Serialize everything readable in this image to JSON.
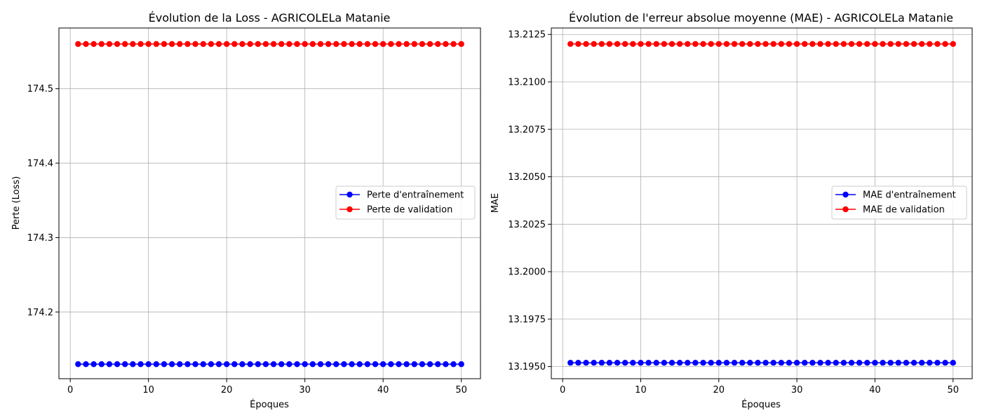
{
  "chart_data": [
    {
      "type": "line",
      "title": "Évolution de la Loss - AGRICOLELa Matanie",
      "xlabel": "Époques",
      "ylabel": "Perte (Loss)",
      "x": [
        1,
        2,
        3,
        4,
        5,
        6,
        7,
        8,
        9,
        10,
        11,
        12,
        13,
        14,
        15,
        16,
        17,
        18,
        19,
        20,
        21,
        22,
        23,
        24,
        25,
        26,
        27,
        28,
        29,
        30,
        31,
        32,
        33,
        34,
        35,
        36,
        37,
        38,
        39,
        40,
        41,
        42,
        43,
        44,
        45,
        46,
        47,
        48,
        49,
        50
      ],
      "xlim": [
        -1.45,
        52.45
      ],
      "ylim": [
        174.1105,
        174.5815
      ],
      "xticks": [
        0,
        10,
        20,
        30,
        40,
        50
      ],
      "yticks": [
        174.2,
        174.3,
        174.4,
        174.5
      ],
      "ytick_labels": [
        "174.2",
        "174.3",
        "174.4",
        "174.5"
      ],
      "grid": true,
      "legend_position": "center-right",
      "series": [
        {
          "name": "Perte d'entraînement",
          "color": "#0000ff",
          "marker": "circle",
          "values": [
            174.13,
            174.13,
            174.13,
            174.13,
            174.13,
            174.13,
            174.13,
            174.13,
            174.13,
            174.13,
            174.13,
            174.13,
            174.13,
            174.13,
            174.13,
            174.13,
            174.13,
            174.13,
            174.13,
            174.13,
            174.13,
            174.13,
            174.13,
            174.13,
            174.13,
            174.13,
            174.13,
            174.13,
            174.13,
            174.13,
            174.13,
            174.13,
            174.13,
            174.13,
            174.13,
            174.13,
            174.13,
            174.13,
            174.13,
            174.13,
            174.13,
            174.13,
            174.13,
            174.13,
            174.13,
            174.13,
            174.13,
            174.13,
            174.13,
            174.13
          ]
        },
        {
          "name": "Perte de validation",
          "color": "#ff0000",
          "marker": "circle",
          "values": [
            174.56,
            174.56,
            174.56,
            174.56,
            174.56,
            174.56,
            174.56,
            174.56,
            174.56,
            174.56,
            174.56,
            174.56,
            174.56,
            174.56,
            174.56,
            174.56,
            174.56,
            174.56,
            174.56,
            174.56,
            174.56,
            174.56,
            174.56,
            174.56,
            174.56,
            174.56,
            174.56,
            174.56,
            174.56,
            174.56,
            174.56,
            174.56,
            174.56,
            174.56,
            174.56,
            174.56,
            174.56,
            174.56,
            174.56,
            174.56,
            174.56,
            174.56,
            174.56,
            174.56,
            174.56,
            174.56,
            174.56,
            174.56,
            174.56,
            174.56
          ]
        }
      ]
    },
    {
      "type": "line",
      "title": "Évolution de l'erreur absolue moyenne (MAE) - AGRICOLELa Matanie",
      "xlabel": "Époques",
      "ylabel": "MAE",
      "x": [
        1,
        2,
        3,
        4,
        5,
        6,
        7,
        8,
        9,
        10,
        11,
        12,
        13,
        14,
        15,
        16,
        17,
        18,
        19,
        20,
        21,
        22,
        23,
        24,
        25,
        26,
        27,
        28,
        29,
        30,
        31,
        32,
        33,
        34,
        35,
        36,
        37,
        38,
        39,
        40,
        41,
        42,
        43,
        44,
        45,
        46,
        47,
        48,
        49,
        50
      ],
      "xlim": [
        -1.45,
        52.45
      ],
      "ylim": [
        13.19436,
        13.21284
      ],
      "xticks": [
        0,
        10,
        20,
        30,
        40,
        50
      ],
      "yticks": [
        13.195,
        13.1975,
        13.2,
        13.2025,
        13.205,
        13.2075,
        13.21,
        13.2125
      ],
      "ytick_labels": [
        "13.1950",
        "13.1975",
        "13.2000",
        "13.2025",
        "13.2050",
        "13.2075",
        "13.2100",
        "13.2125"
      ],
      "grid": true,
      "legend_position": "center-right",
      "series": [
        {
          "name": "MAE d'entraînement",
          "color": "#0000ff",
          "marker": "circle",
          "values": [
            13.1952,
            13.1952,
            13.1952,
            13.1952,
            13.1952,
            13.1952,
            13.1952,
            13.1952,
            13.1952,
            13.1952,
            13.1952,
            13.1952,
            13.1952,
            13.1952,
            13.1952,
            13.1952,
            13.1952,
            13.1952,
            13.1952,
            13.1952,
            13.1952,
            13.1952,
            13.1952,
            13.1952,
            13.1952,
            13.1952,
            13.1952,
            13.1952,
            13.1952,
            13.1952,
            13.1952,
            13.1952,
            13.1952,
            13.1952,
            13.1952,
            13.1952,
            13.1952,
            13.1952,
            13.1952,
            13.1952,
            13.1952,
            13.1952,
            13.1952,
            13.1952,
            13.1952,
            13.1952,
            13.1952,
            13.1952,
            13.1952,
            13.1952
          ]
        },
        {
          "name": "MAE de validation",
          "color": "#ff0000",
          "marker": "circle",
          "values": [
            13.212,
            13.212,
            13.212,
            13.212,
            13.212,
            13.212,
            13.212,
            13.212,
            13.212,
            13.212,
            13.212,
            13.212,
            13.212,
            13.212,
            13.212,
            13.212,
            13.212,
            13.212,
            13.212,
            13.212,
            13.212,
            13.212,
            13.212,
            13.212,
            13.212,
            13.212,
            13.212,
            13.212,
            13.212,
            13.212,
            13.212,
            13.212,
            13.212,
            13.212,
            13.212,
            13.212,
            13.212,
            13.212,
            13.212,
            13.212,
            13.212,
            13.212,
            13.212,
            13.212,
            13.212,
            13.212,
            13.212,
            13.212,
            13.212,
            13.212
          ]
        }
      ]
    }
  ]
}
